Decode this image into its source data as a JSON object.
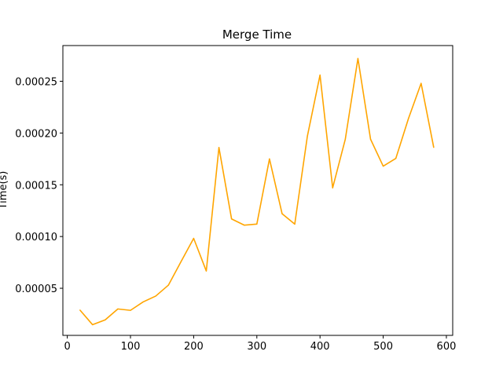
{
  "chart_data": {
    "type": "line",
    "title": "Merge Time",
    "xlabel": "",
    "ylabel": "Time(s)",
    "xlim": [
      -7,
      610
    ],
    "ylim": [
      4.5e-06,
      0.0002845
    ],
    "x_ticks": [
      0,
      100,
      200,
      300,
      400,
      500,
      600
    ],
    "x_tick_labels": [
      "0",
      "100",
      "200",
      "300",
      "400",
      "500",
      "600"
    ],
    "y_ticks": [
      5e-05,
      0.0001,
      0.00015,
      0.0002,
      0.00025
    ],
    "y_tick_labels": [
      "0.00005",
      "0.00010",
      "0.00015",
      "0.00020",
      "0.00025"
    ],
    "grid": false,
    "series": [
      {
        "color": "#ffa500",
        "x": [
          20,
          40,
          60,
          80,
          100,
          120,
          140,
          160,
          180,
          200,
          220,
          240,
          260,
          280,
          300,
          320,
          340,
          360,
          380,
          400,
          420,
          440,
          460,
          480,
          500,
          520,
          540,
          560,
          580
        ],
        "y": [
          2.9e-05,
          1.48e-05,
          1.95e-05,
          3e-05,
          2.87e-05,
          3.68e-05,
          4.25e-05,
          5.3e-05,
          7.57e-05,
          9.82e-05,
          6.67e-05,
          0.000186,
          0.000117,
          0.000111,
          0.000112,
          0.000175,
          0.000122,
          0.000112,
          0.000197,
          0.000256,
          0.000147,
          0.000194,
          0.000272,
          0.000194,
          0.000168,
          0.0001755,
          0.000214,
          0.000248,
          0.000186
        ]
      }
    ]
  }
}
